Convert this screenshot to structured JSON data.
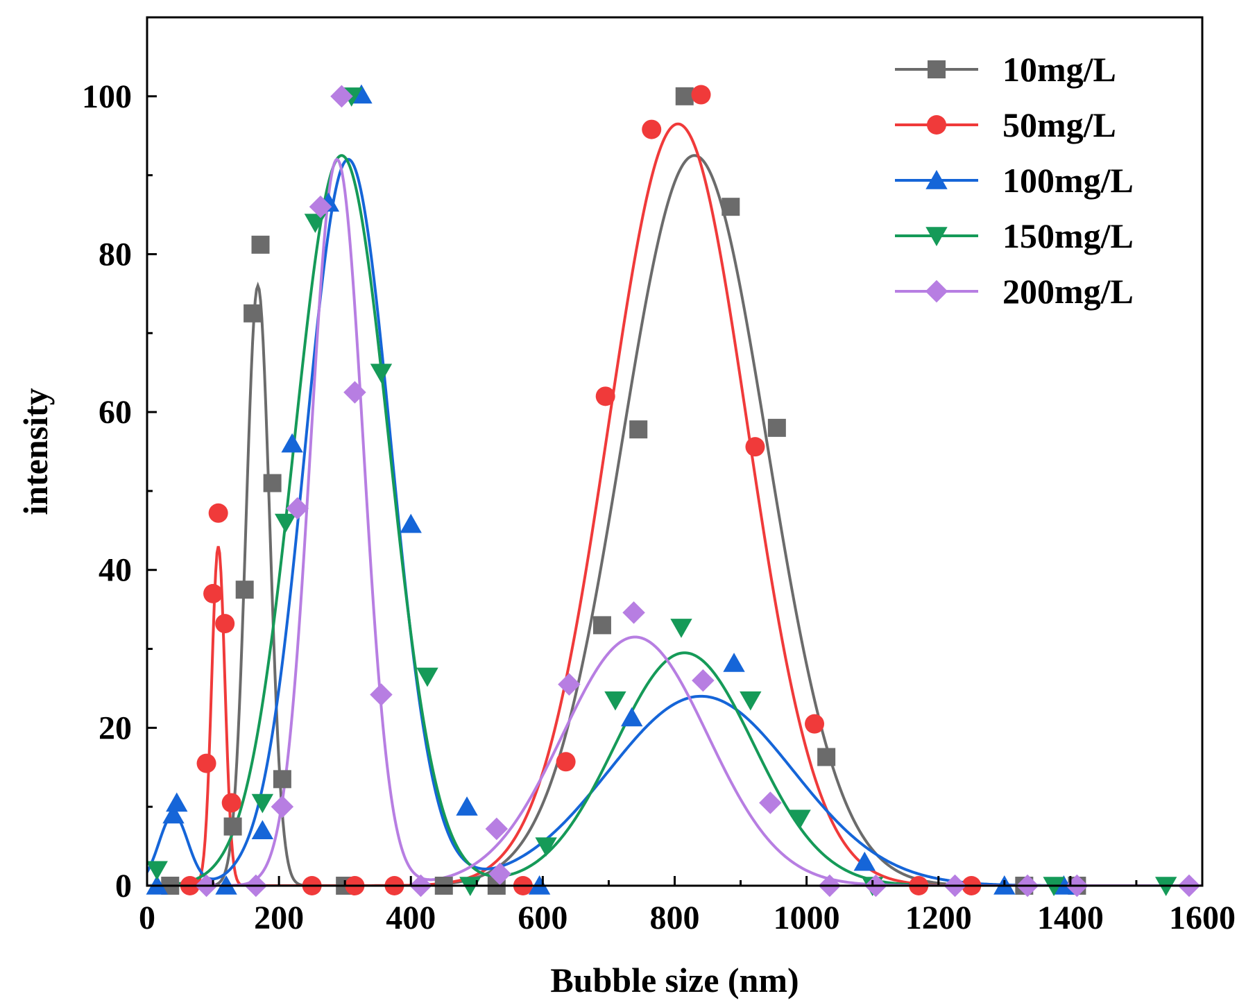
{
  "chart_data": {
    "type": "scatter",
    "title": "",
    "xlabel": "Bubble size (nm)",
    "ylabel": "intensity",
    "xlim": [
      0,
      1600
    ],
    "ylim": [
      0,
      110
    ],
    "xticks": [
      0,
      200,
      400,
      600,
      800,
      1000,
      1200,
      1400,
      1600
    ],
    "yticks": [
      0,
      20,
      40,
      60,
      80,
      100
    ],
    "legend_position": "top-right",
    "series": [
      {
        "name": "10mg/L",
        "color": "#6b6b6b",
        "marker": "square",
        "points": [
          [
            35,
            0
          ],
          [
            130,
            7.5
          ],
          [
            148,
            37.5
          ],
          [
            160,
            72.5
          ],
          [
            172,
            81.2
          ],
          [
            190,
            51
          ],
          [
            205,
            13.5
          ],
          [
            300,
            0
          ],
          [
            450,
            0
          ],
          [
            530,
            0
          ],
          [
            690,
            33
          ],
          [
            745,
            57.8
          ],
          [
            815,
            100
          ],
          [
            885,
            86
          ],
          [
            955,
            58
          ],
          [
            1030,
            16.3
          ],
          [
            1330,
            0
          ],
          [
            1410,
            0
          ]
        ],
        "fit": [
          {
            "amp": 76,
            "mu": 168,
            "sigma": 18
          },
          {
            "amp": 92.5,
            "mu": 830,
            "sigma": 110
          }
        ]
      },
      {
        "name": "50mg/L",
        "color": "#f03a3a",
        "marker": "circle",
        "points": [
          [
            65,
            0
          ],
          [
            90,
            15.5
          ],
          [
            100,
            37
          ],
          [
            108,
            47.2
          ],
          [
            118,
            33.2
          ],
          [
            128,
            10.5
          ],
          [
            250,
            0
          ],
          [
            315,
            0
          ],
          [
            375,
            0
          ],
          [
            570,
            0
          ],
          [
            635,
            15.7
          ],
          [
            695,
            62
          ],
          [
            765,
            95.8
          ],
          [
            840,
            100.2
          ],
          [
            922,
            55.6
          ],
          [
            1012,
            20.5
          ],
          [
            1170,
            0
          ],
          [
            1250,
            0
          ]
        ],
        "fit": [
          {
            "amp": 43,
            "mu": 108,
            "sigma": 10
          },
          {
            "amp": 96.5,
            "mu": 805,
            "sigma": 105
          }
        ]
      },
      {
        "name": "100mg/L",
        "color": "#1565d8",
        "marker": "triangle-up",
        "points": [
          [
            15,
            0
          ],
          [
            40,
            9
          ],
          [
            45,
            10.5
          ],
          [
            120,
            0
          ],
          [
            175,
            7
          ],
          [
            220,
            56
          ],
          [
            275,
            86.5
          ],
          [
            325,
            100.2
          ],
          [
            400,
            45.8
          ],
          [
            485,
            10
          ],
          [
            595,
            0
          ],
          [
            735,
            21.3
          ],
          [
            890,
            28.2
          ],
          [
            1088,
            3
          ],
          [
            1300,
            0
          ],
          [
            1390,
            0
          ]
        ],
        "fit": [
          {
            "amp": 9,
            "mu": 40,
            "sigma": 22
          },
          {
            "amp": 92,
            "mu": 305,
            "sigma": 65
          },
          {
            "amp": 24,
            "mu": 840,
            "sigma": 140
          }
        ]
      },
      {
        "name": "150mg/L",
        "color": "#159a58",
        "marker": "triangle-down",
        "points": [
          [
            15,
            2
          ],
          [
            175,
            10.5
          ],
          [
            210,
            46
          ],
          [
            255,
            84
          ],
          [
            310,
            100
          ],
          [
            355,
            65
          ],
          [
            425,
            26.5
          ],
          [
            490,
            0
          ],
          [
            605,
            5
          ],
          [
            710,
            23.5
          ],
          [
            810,
            32.7
          ],
          [
            915,
            23.5
          ],
          [
            990,
            8.5
          ],
          [
            1100,
            0
          ],
          [
            1375,
            0
          ],
          [
            1545,
            0
          ]
        ],
        "fit": [
          {
            "amp": 92.5,
            "mu": 295,
            "sigma": 72
          },
          {
            "amp": 29.5,
            "mu": 815,
            "sigma": 105
          }
        ]
      },
      {
        "name": "200mg/L",
        "color": "#b77ee2",
        "marker": "diamond",
        "points": [
          [
            90,
            0
          ],
          [
            165,
            0
          ],
          [
            205,
            10
          ],
          [
            228,
            47.8
          ],
          [
            263,
            86
          ],
          [
            295,
            100
          ],
          [
            315,
            62.5
          ],
          [
            355,
            24.2
          ],
          [
            415,
            0
          ],
          [
            530,
            7.2
          ],
          [
            535,
            1.5
          ],
          [
            640,
            25.5
          ],
          [
            738,
            34.6
          ],
          [
            843,
            26
          ],
          [
            945,
            10.5
          ],
          [
            1035,
            0
          ],
          [
            1105,
            0
          ],
          [
            1225,
            0
          ],
          [
            1335,
            0
          ],
          [
            1410,
            0
          ],
          [
            1580,
            0
          ]
        ],
        "fit": [
          {
            "amp": 92,
            "mu": 288,
            "sigma": 40
          },
          {
            "amp": 31.5,
            "mu": 740,
            "sigma": 110
          }
        ]
      }
    ]
  }
}
